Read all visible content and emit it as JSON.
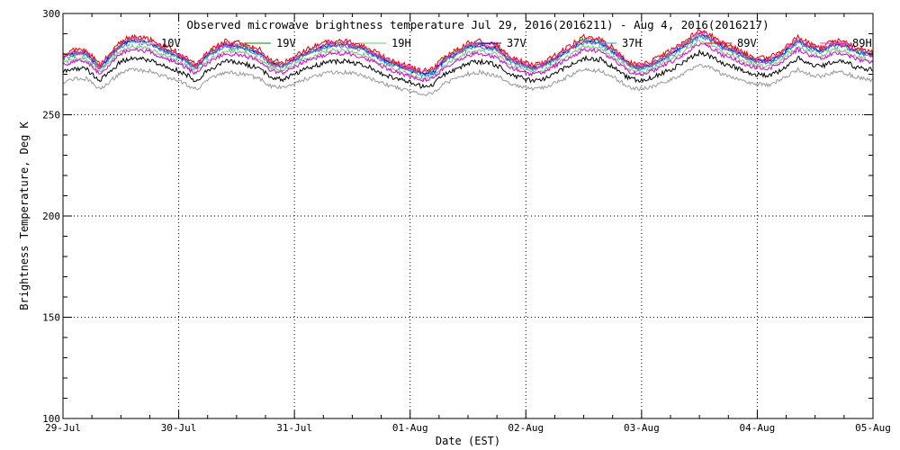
{
  "chart_data": {
    "type": "line",
    "title": "Observed microwave brightness temperature Jul 29, 2016(2016211) - Aug  4, 2016(2016217)",
    "xlabel": "Date (EST)",
    "ylabel": "Brightness Temperature, Deg K",
    "xlim": [
      0,
      7
    ],
    "ylim": [
      100,
      300
    ],
    "x_ticks": [
      0,
      1,
      2,
      3,
      4,
      5,
      6,
      7
    ],
    "x_tick_labels": [
      "29-Jul",
      "30-Jul",
      "31-Jul",
      "01-Aug",
      "02-Aug",
      "03-Aug",
      "04-Aug",
      "05-Aug"
    ],
    "y_ticks": [
      100,
      150,
      200,
      250,
      300
    ],
    "y_tick_labels": [
      "100",
      "150",
      "200",
      "250",
      "300"
    ],
    "grid": true,
    "legend_position": "top",
    "base_profile": {
      "x": [
        0,
        0.1,
        0.2,
        0.25,
        0.32,
        0.4,
        0.5,
        0.6,
        0.75,
        0.85,
        0.95,
        1.05,
        1.15,
        1.25,
        1.4,
        1.55,
        1.7,
        1.8,
        1.9,
        2.0,
        2.1,
        2.2,
        2.3,
        2.45,
        2.6,
        2.8,
        3.0,
        3.1,
        3.2,
        3.3,
        3.5,
        3.6,
        3.75,
        3.85,
        3.95,
        4.05,
        4.15,
        4.3,
        4.5,
        4.65,
        4.8,
        4.9,
        5.0,
        5.1,
        5.3,
        5.5,
        5.6,
        5.7,
        5.8,
        5.95,
        6.1,
        6.2,
        6.35,
        6.45,
        6.55,
        6.65,
        6.75,
        6.85,
        7.0
      ],
      "y": [
        277,
        279,
        279,
        276,
        272,
        277,
        283,
        285,
        284,
        281,
        279,
        276,
        272,
        278,
        283,
        282,
        279,
        274,
        273,
        276,
        279,
        281,
        283,
        283,
        281,
        275,
        271,
        269,
        270,
        276,
        282,
        283,
        281,
        276,
        274,
        272,
        273,
        278,
        285,
        284,
        278,
        273,
        272,
        274,
        280,
        288,
        286,
        282,
        280,
        276,
        275,
        278,
        285,
        282,
        280,
        283,
        283,
        280,
        278
      ]
    },
    "series": [
      {
        "name": "10V",
        "offset": 0,
        "noise": 0.8,
        "color": "#ffffff"
      },
      {
        "name": "",
        "offset": -5,
        "noise": 1.2,
        "color": "#000000"
      },
      {
        "name": "",
        "offset": -9,
        "noise": 1.0,
        "color": "#999999"
      },
      {
        "name": "19V",
        "offset": 1.5,
        "noise": 0.9,
        "color": "#008800"
      },
      {
        "name": "19H",
        "offset": -1,
        "noise": 1.0,
        "color": "#66cc66"
      },
      {
        "name": "37V",
        "offset": 1,
        "noise": 0.9,
        "color": "#0000ff"
      },
      {
        "name": "37H",
        "offset": 0.5,
        "noise": 1.0,
        "color": "#2299dd"
      },
      {
        "name": "89V",
        "offset": 2.5,
        "noise": 1.3,
        "color": "#dd0000"
      },
      {
        "name": "",
        "offset": -2,
        "noise": 1.0,
        "color": "#dd00dd"
      },
      {
        "name": "89H",
        "offset": 1.5,
        "noise": 1.4,
        "color": "#ff3399"
      }
    ]
  }
}
